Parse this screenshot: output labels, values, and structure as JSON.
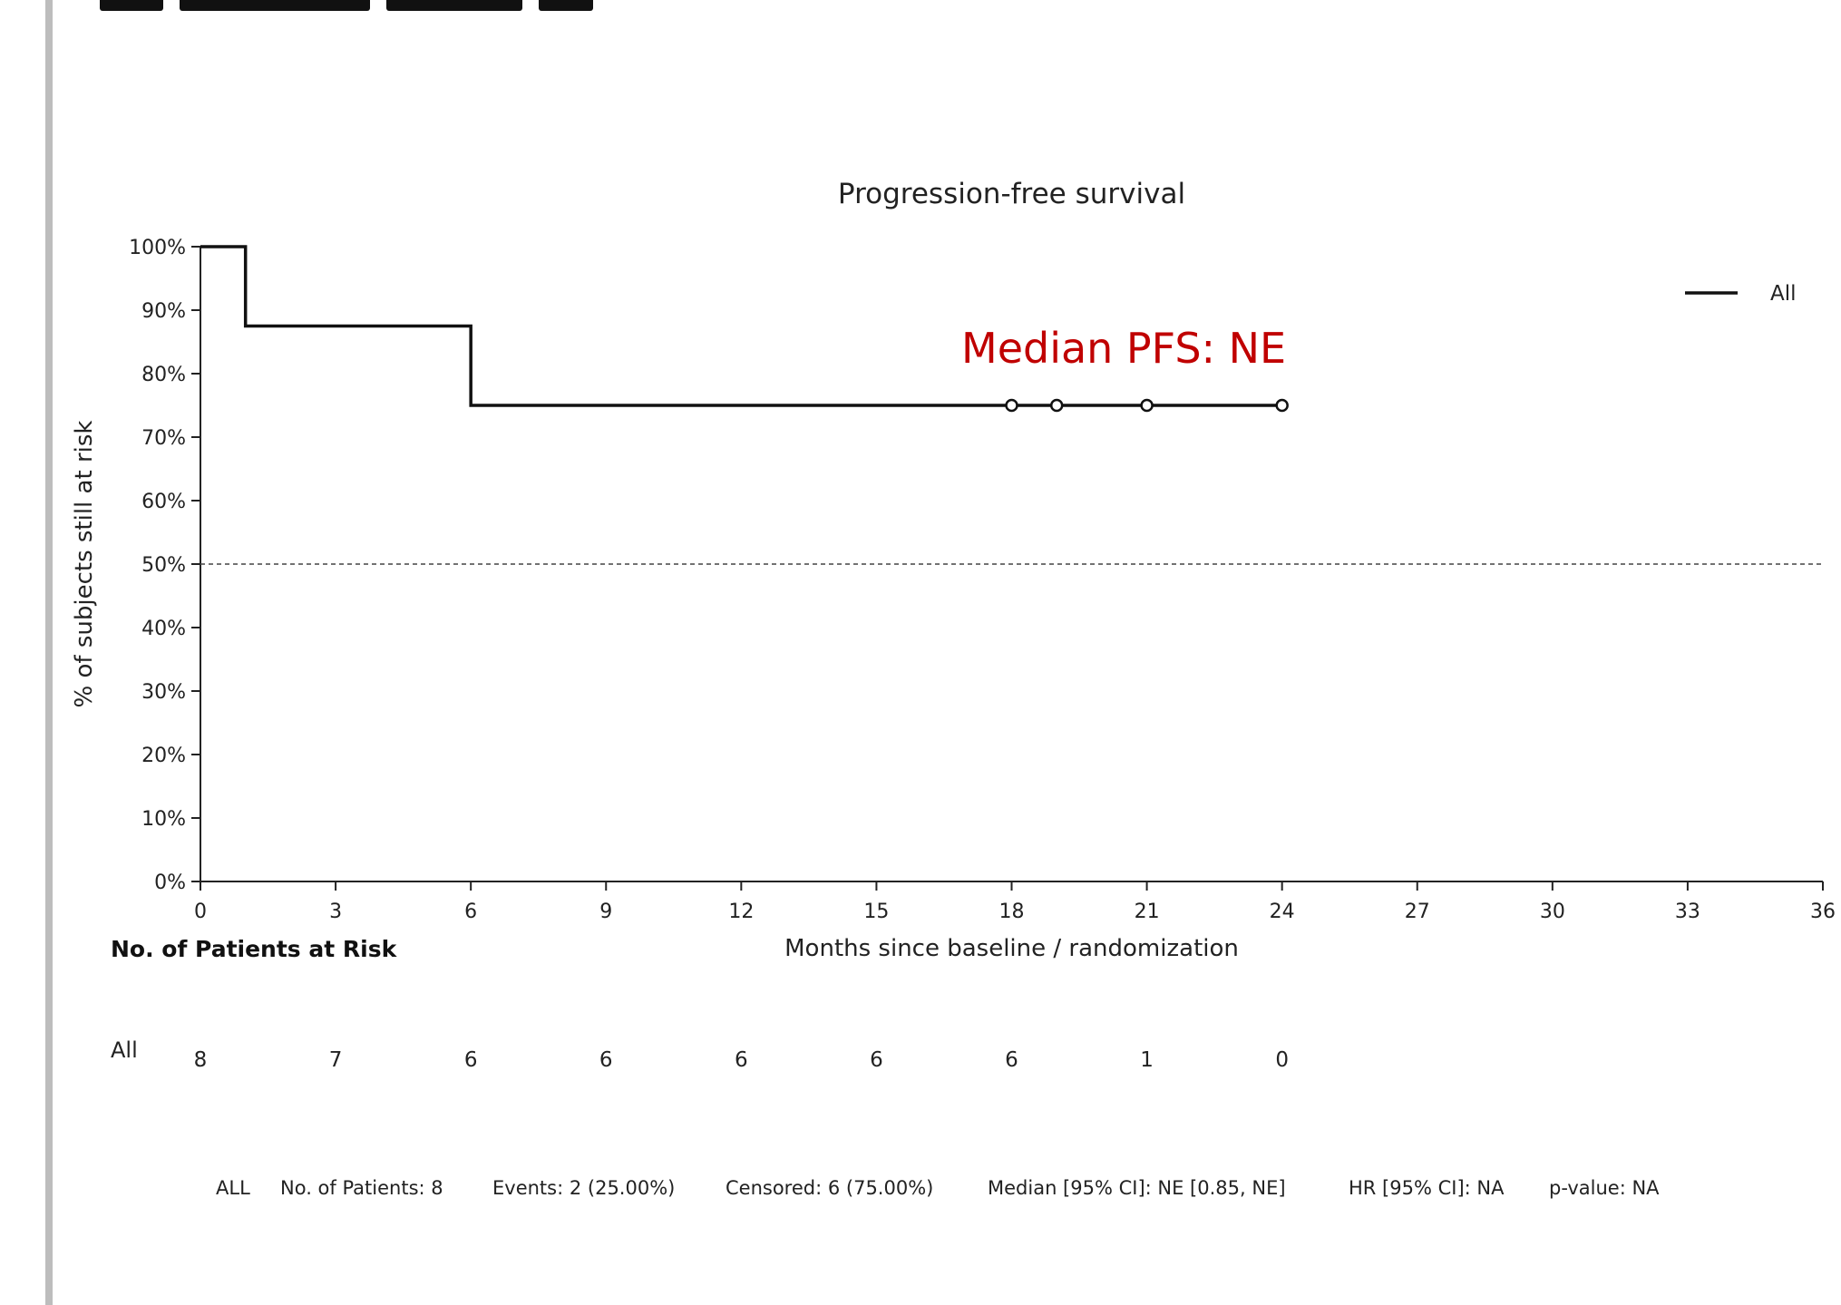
{
  "chart_data": {
    "type": "line",
    "title": "Progression-free survival",
    "xlabel": "Months since baseline / randomization",
    "ylabel": "% of subjects still at risk",
    "xlim": [
      0,
      36
    ],
    "ylim": [
      0,
      100
    ],
    "x_ticks": [
      0,
      3,
      6,
      9,
      12,
      15,
      18,
      21,
      24,
      27,
      30,
      33,
      36
    ],
    "y_ticks": [
      "0%",
      "10%",
      "20%",
      "30%",
      "40%",
      "50%",
      "60%",
      "70%",
      "80%",
      "90%",
      "100%"
    ],
    "reference_line": 50,
    "legend_position": "top-right",
    "series": [
      {
        "name": "All",
        "color": "#111111",
        "steps": [
          {
            "x": 0,
            "y": 100
          },
          {
            "x": 1,
            "y": 87.5
          },
          {
            "x": 6,
            "y": 75
          },
          {
            "x": 24,
            "y": 75
          }
        ],
        "censored": [
          {
            "x": 18,
            "y": 75
          },
          {
            "x": 19,
            "y": 75
          },
          {
            "x": 21,
            "y": 75
          },
          {
            "x": 24,
            "y": 75
          }
        ]
      }
    ],
    "annotation": {
      "text": "Median PFS: NE",
      "color": "#c00000"
    }
  },
  "risk_table": {
    "title": "No. of Patients at Risk",
    "rows": [
      {
        "label": "All",
        "times": [
          0,
          3,
          6,
          9,
          12,
          15,
          18,
          21,
          24
        ],
        "values": [
          "8",
          "7",
          "6",
          "6",
          "6",
          "6",
          "6",
          "1",
          "0"
        ]
      }
    ]
  },
  "footer": {
    "group": "ALL",
    "patients": "No. of Patients: 8",
    "events": "Events: 2 (25.00%)",
    "censored": "Censored: 6 (75.00%)",
    "median": "Median [95% CI]: NE [0.85, NE]",
    "hr": "HR [95% CI]: NA",
    "pvalue": "p-value: NA"
  }
}
